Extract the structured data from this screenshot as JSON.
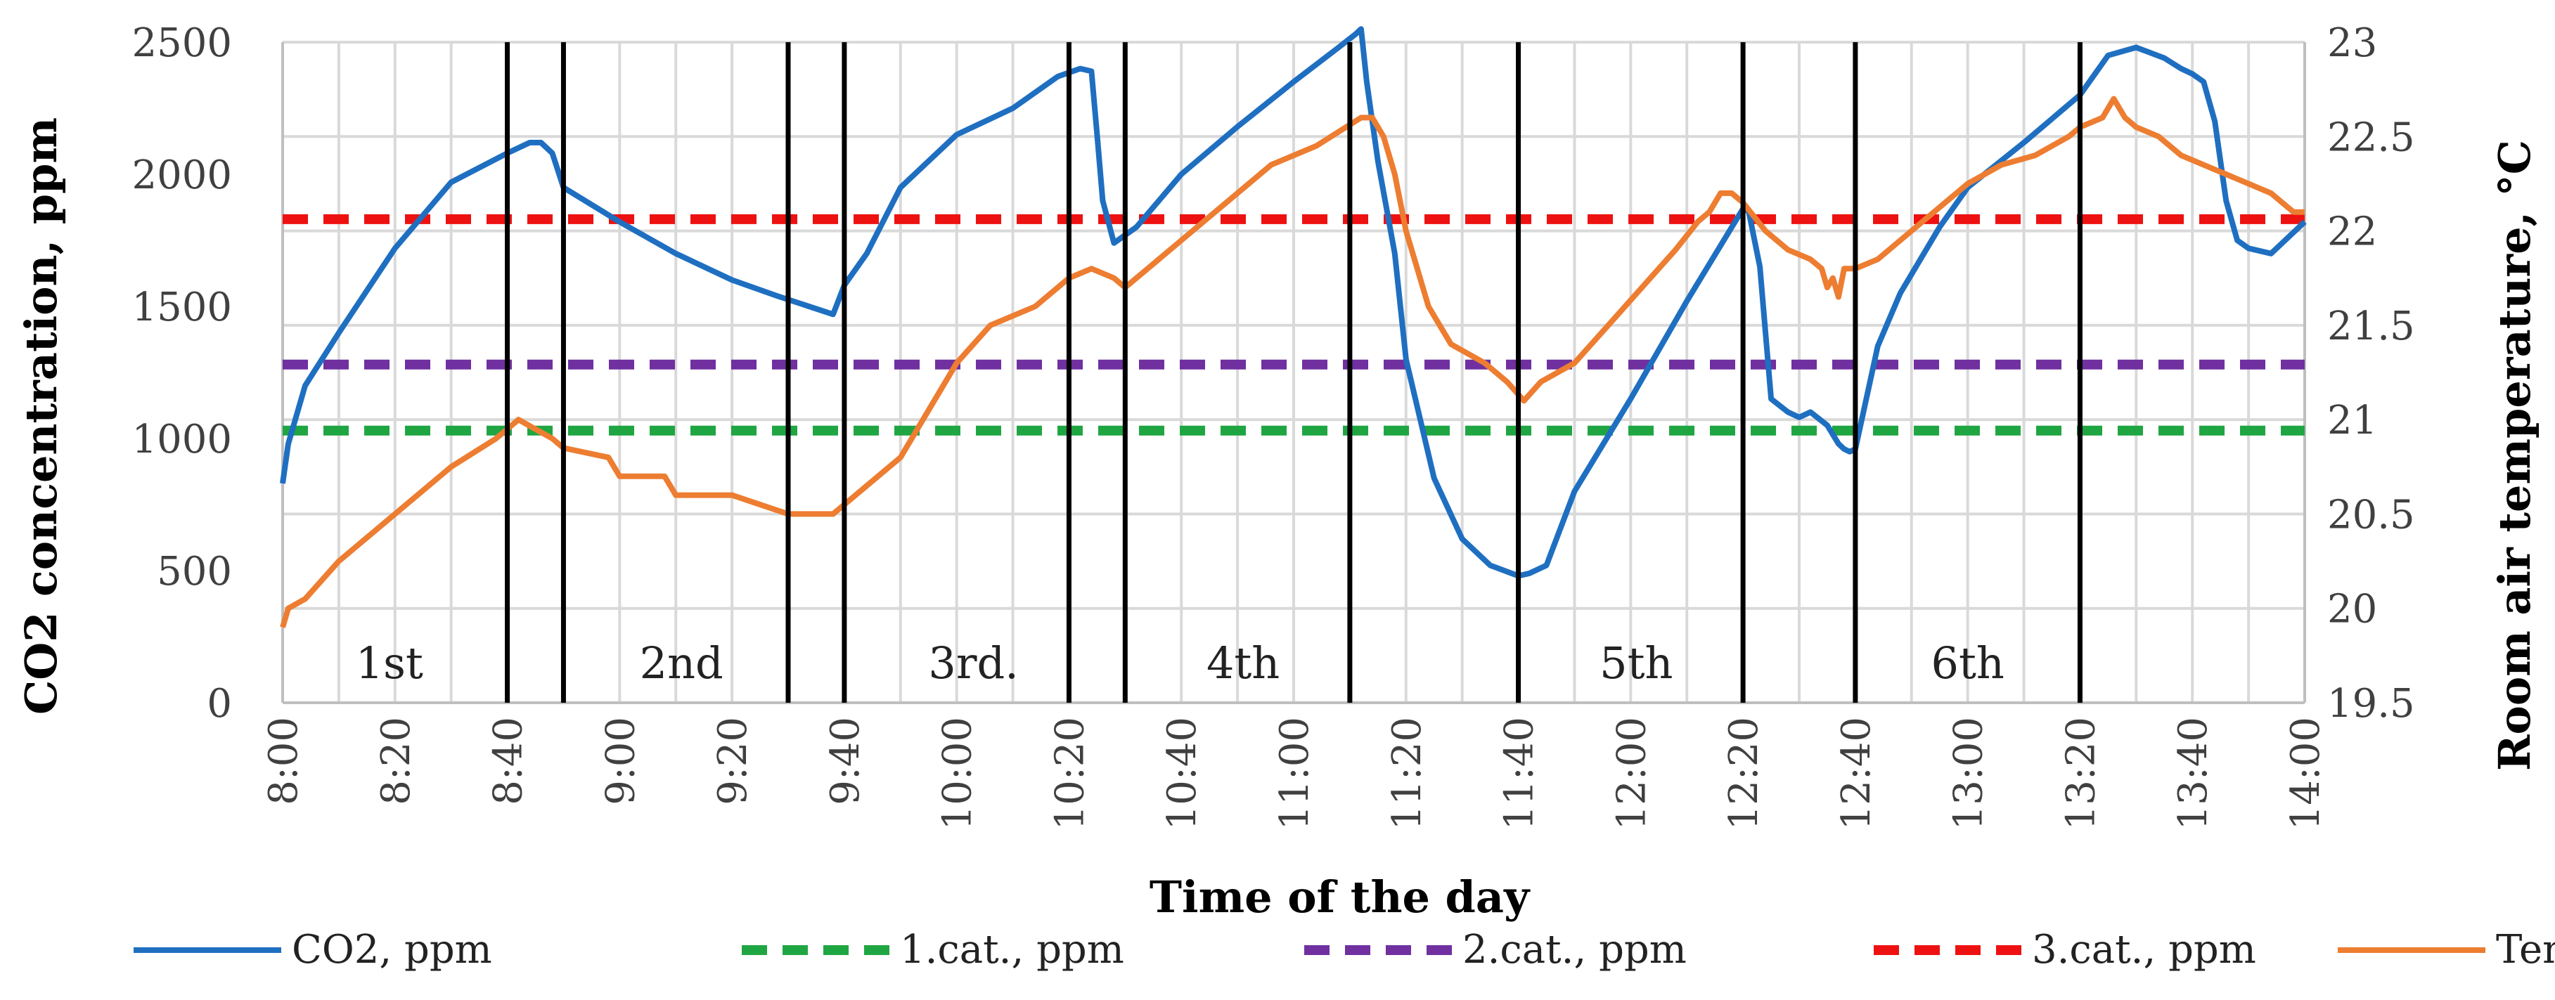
{
  "chart_data": {
    "type": "line",
    "xlabel": "Time of the day",
    "ylabel_left": "CO2 concentration, ppm",
    "ylabel_right": "Room air temperature,  °C",
    "x_range_minutes": [
      480,
      840
    ],
    "x_ticks": [
      {
        "min": 480,
        "label": "8:00"
      },
      {
        "min": 500,
        "label": "8:20"
      },
      {
        "min": 520,
        "label": "8:40"
      },
      {
        "min": 540,
        "label": "9:00"
      },
      {
        "min": 560,
        "label": "9:20"
      },
      {
        "min": 580,
        "label": "9:40"
      },
      {
        "min": 600,
        "label": "10:00"
      },
      {
        "min": 620,
        "label": "10:20"
      },
      {
        "min": 640,
        "label": "10:40"
      },
      {
        "min": 660,
        "label": "11:00"
      },
      {
        "min": 680,
        "label": "11:20"
      },
      {
        "min": 700,
        "label": "11:40"
      },
      {
        "min": 720,
        "label": "12:00"
      },
      {
        "min": 740,
        "label": "12:20"
      },
      {
        "min": 760,
        "label": "12:40"
      },
      {
        "min": 780,
        "label": "13:00"
      },
      {
        "min": 800,
        "label": "13:20"
      },
      {
        "min": 820,
        "label": "13:40"
      },
      {
        "min": 840,
        "label": "14:00"
      }
    ],
    "y_left": {
      "min": 0,
      "max": 2500,
      "ticks": [
        "0",
        "500",
        "1000",
        "1500",
        "2000",
        "2500"
      ]
    },
    "y_right": {
      "min": 19.5,
      "max": 23,
      "ticks": [
        "19.5",
        "20",
        "20.5",
        "21",
        "21.5",
        "22",
        "22.5",
        "23"
      ]
    },
    "lesson_boundaries_min": [
      520,
      530,
      570,
      580,
      620,
      630,
      670,
      700,
      740,
      760,
      800
    ],
    "lessons": [
      {
        "label": "1st",
        "at_min": 499
      },
      {
        "label": "2nd",
        "at_min": 551
      },
      {
        "label": "3rd.",
        "at_min": 603
      },
      {
        "label": "4th",
        "at_min": 651
      },
      {
        "label": "5th",
        "at_min": 721
      },
      {
        "label": "6th",
        "at_min": 780
      }
    ],
    "thresholds": [
      {
        "name": "1.cat., ppm",
        "value": 1030,
        "color": "#1fa642"
      },
      {
        "name": "2.cat., ppm",
        "value": 1280,
        "color": "#7030a0"
      },
      {
        "name": "3.cat., ppm",
        "value": 1830,
        "color": "#ee1111"
      }
    ],
    "series": [
      {
        "name": "CO2, ppm",
        "axis": "left",
        "color": "#1f6fc1",
        "x": [
          480,
          481,
          484,
          490,
          500,
          510,
          520,
          524,
          526,
          528,
          530,
          540,
          550,
          560,
          568,
          578,
          580,
          584,
          590,
          600,
          610,
          618,
          622,
          624,
          625,
          626,
          628,
          632,
          640,
          650,
          660,
          668,
          671,
          672,
          673,
          675,
          678,
          680,
          685,
          690,
          695,
          700,
          702,
          705,
          710,
          720,
          730,
          740,
          741,
          743,
          745,
          748,
          750,
          752,
          755,
          757,
          758,
          759,
          760,
          764,
          768,
          775,
          780,
          790,
          800,
          805,
          810,
          815,
          818,
          820,
          822,
          824,
          826,
          828,
          830,
          834,
          840
        ],
        "values": [
          830,
          980,
          1200,
          1400,
          1720,
          1970,
          2080,
          2120,
          2120,
          2080,
          1950,
          1820,
          1700,
          1600,
          1540,
          1470,
          1580,
          1700,
          1950,
          2150,
          2250,
          2370,
          2400,
          2390,
          2150,
          1900,
          1740,
          1800,
          2000,
          2180,
          2350,
          2480,
          2530,
          2550,
          2350,
          2050,
          1700,
          1300,
          850,
          620,
          520,
          480,
          490,
          520,
          800,
          1150,
          1520,
          1870,
          1860,
          1650,
          1150,
          1100,
          1080,
          1100,
          1050,
          980,
          960,
          950,
          960,
          1350,
          1550,
          1800,
          1950,
          2120,
          2300,
          2450,
          2480,
          2440,
          2400,
          2380,
          2350,
          2200,
          1900,
          1750,
          1720,
          1700,
          1820
        ]
      },
      {
        "name": "Temp, °C",
        "axis": "right",
        "color": "#ed7d31",
        "x": [
          480,
          481,
          484,
          490,
          500,
          510,
          518,
          522,
          525,
          528,
          530,
          538,
          540,
          548,
          550,
          560,
          570,
          578,
          582,
          590,
          596,
          600,
          606,
          614,
          620,
          624,
          628,
          630,
          634,
          640,
          648,
          656,
          664,
          672,
          674,
          676,
          678,
          680,
          682,
          684,
          688,
          694,
          698,
          701,
          704,
          710,
          716,
          722,
          728,
          732,
          734,
          736,
          738,
          740,
          744,
          748,
          752,
          754,
          755,
          756,
          757,
          758,
          760,
          764,
          768,
          774,
          780,
          786,
          792,
          798,
          800,
          804,
          806,
          808,
          810,
          814,
          818,
          822,
          826,
          830,
          834,
          838,
          840
        ],
        "values": [
          19.9,
          20.0,
          20.05,
          20.25,
          20.5,
          20.75,
          20.9,
          21.0,
          20.95,
          20.9,
          20.85,
          20.8,
          20.7,
          20.7,
          20.6,
          20.6,
          20.5,
          20.5,
          20.6,
          20.8,
          21.1,
          21.3,
          21.5,
          21.6,
          21.75,
          21.8,
          21.75,
          21.7,
          21.8,
          21.95,
          22.15,
          22.35,
          22.45,
          22.6,
          22.6,
          22.5,
          22.3,
          22.0,
          21.8,
          21.6,
          21.4,
          21.3,
          21.2,
          21.1,
          21.2,
          21.3,
          21.5,
          21.7,
          21.9,
          22.05,
          22.1,
          22.2,
          22.2,
          22.15,
          22.0,
          21.9,
          21.85,
          21.8,
          21.7,
          21.75,
          21.65,
          21.8,
          21.8,
          21.85,
          21.95,
          22.1,
          22.25,
          22.35,
          22.4,
          22.5,
          22.55,
          22.6,
          22.7,
          22.6,
          22.55,
          22.5,
          22.4,
          22.35,
          22.3,
          22.25,
          22.2,
          22.1,
          22.1
        ]
      }
    ],
    "legend": [
      "CO2, ppm",
      "1.cat., ppm",
      "2.cat., ppm",
      "3.cat., ppm",
      "Temp, °C"
    ]
  }
}
